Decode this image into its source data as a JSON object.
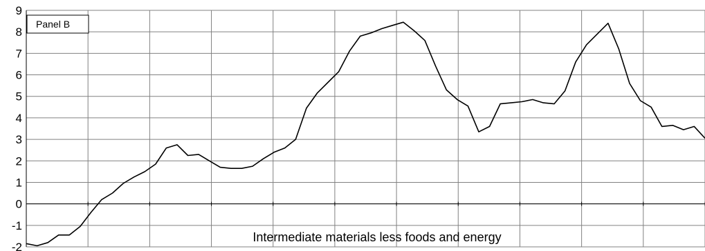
{
  "chart_data": {
    "type": "line",
    "panel_label": "Panel B",
    "annotation": "Intermediate materials less foods and energy",
    "ylim": [
      -2,
      9
    ],
    "yticks": [
      -2,
      -1,
      0,
      1,
      2,
      3,
      4,
      5,
      6,
      7,
      8,
      9
    ],
    "x_gridlines": 11,
    "grid": true,
    "series": [
      {
        "values": [
          -1.85,
          -1.95,
          -1.8,
          -1.45,
          -1.45,
          -1.05,
          -0.4,
          0.2,
          0.5,
          0.95,
          1.25,
          1.5,
          1.85,
          2.6,
          2.75,
          2.25,
          2.3,
          2.0,
          1.7,
          1.65,
          1.65,
          1.75,
          2.1,
          2.4,
          2.6,
          3.0,
          4.45,
          5.15,
          5.65,
          6.15,
          7.1,
          7.8,
          7.95,
          8.15,
          8.3,
          8.45,
          8.05,
          7.6,
          6.4,
          5.3,
          4.85,
          4.55,
          3.35,
          3.6,
          4.65,
          4.7,
          4.75,
          4.85,
          4.7,
          4.65,
          5.25,
          6.6,
          7.4,
          7.9,
          8.4,
          7.2,
          5.6,
          4.8,
          4.5,
          3.6,
          3.65,
          3.45,
          3.6,
          3.05
        ],
        "color": "#000000"
      }
    ]
  }
}
